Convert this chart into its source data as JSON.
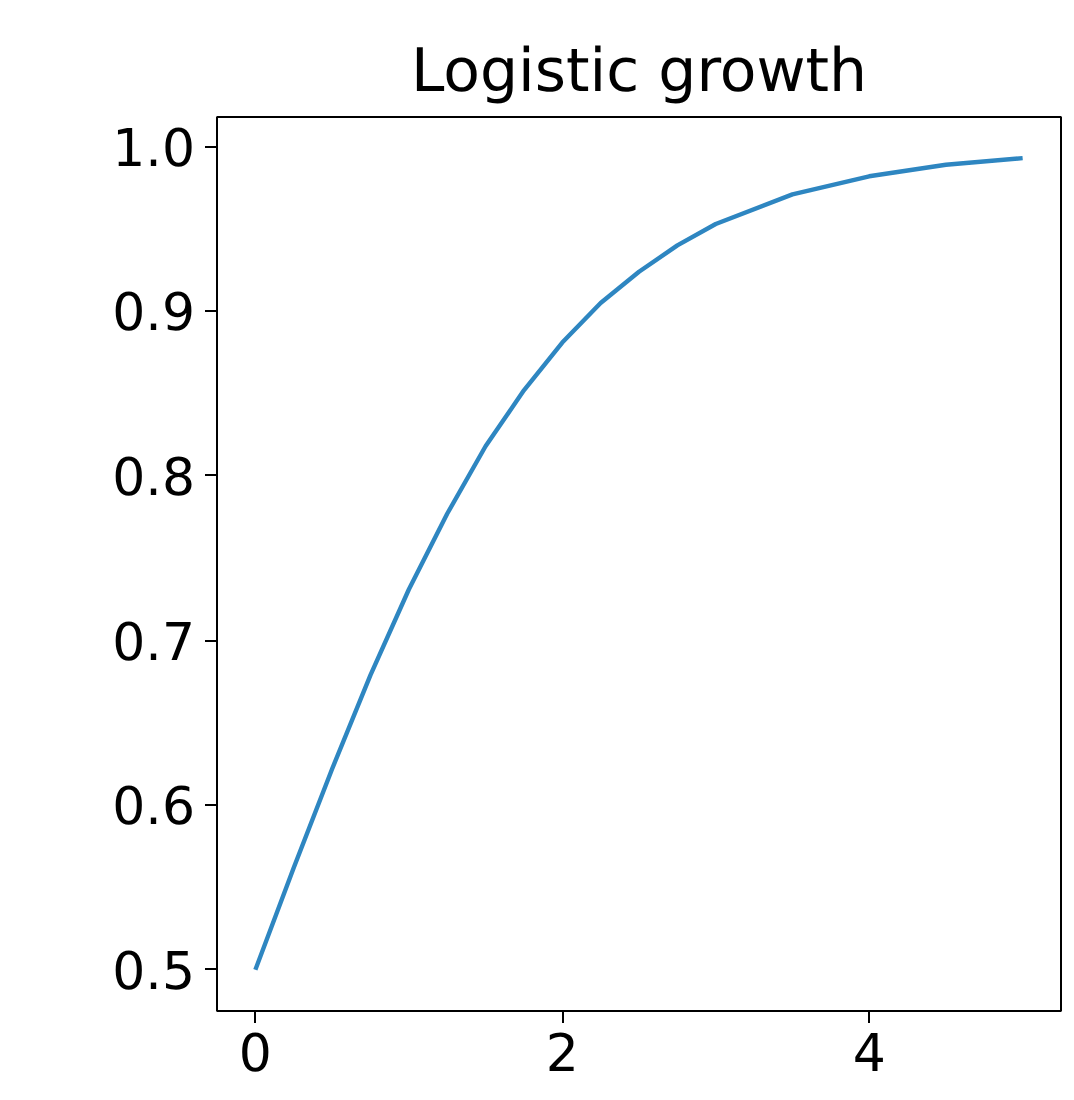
{
  "chart_data": {
    "type": "line",
    "title": "Logistic growth",
    "x": [
      0,
      0.25,
      0.5,
      0.75,
      1,
      1.25,
      1.5,
      1.75,
      2,
      2.25,
      2.5,
      2.75,
      3,
      3.5,
      4,
      4.5,
      5
    ],
    "series": [
      {
        "color": "#2e86c1",
        "values": [
          0.5,
          0.562,
          0.622,
          0.679,
          0.731,
          0.777,
          0.818,
          0.852,
          0.881,
          0.905,
          0.924,
          0.94,
          0.953,
          0.971,
          0.982,
          0.989,
          0.993
        ]
      }
    ],
    "xlim": [
      -0.25,
      5.25
    ],
    "xticks": [
      0,
      2,
      4
    ],
    "ylim": [
      0.475,
      1.018
    ],
    "yticks": [
      0.5,
      0.6,
      0.7,
      0.8,
      0.9,
      {
        "value": 1,
        "label": "1.0"
      }
    ]
  }
}
